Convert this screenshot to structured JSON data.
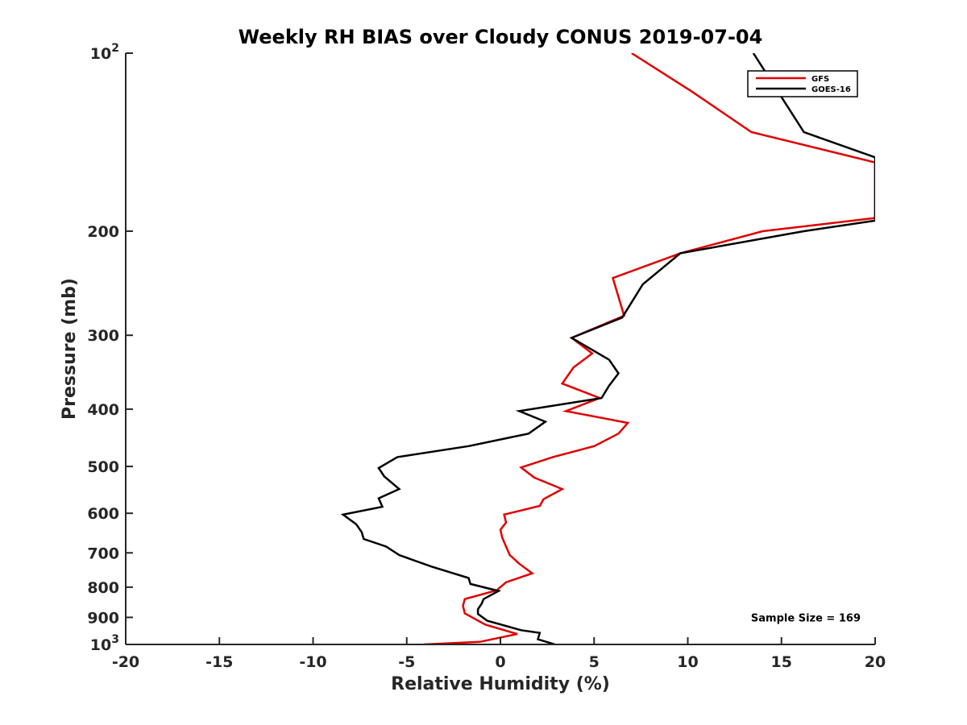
{
  "chart_data": {
    "type": "line",
    "title": "Weekly RH BIAS over Cloudy CONUS 2019-07-04",
    "xlabel": "Relative Humidity (%)",
    "ylabel": "Pressure (mb)",
    "xlim": [
      -20,
      20
    ],
    "ylim": [
      100,
      1000
    ],
    "y_scale": "log",
    "y_reversed": true,
    "x_ticks": [
      -20,
      -15,
      -10,
      -5,
      0,
      5,
      10,
      15,
      20
    ],
    "x_tick_labels": [
      "-20",
      "-15",
      "-10",
      "-5",
      "0",
      "5",
      "10",
      "15",
      "20"
    ],
    "y_ticks": [
      100,
      200,
      300,
      400,
      500,
      600,
      700,
      800,
      900,
      1000
    ],
    "y_tick_labels": [
      {
        "base": "10",
        "exp": "2"
      },
      {
        "base": "200",
        "exp": ""
      },
      {
        "base": "300",
        "exp": ""
      },
      {
        "base": "400",
        "exp": ""
      },
      {
        "base": "500",
        "exp": ""
      },
      {
        "base": "600",
        "exp": ""
      },
      {
        "base": "700",
        "exp": ""
      },
      {
        "base": "800",
        "exp": ""
      },
      {
        "base": "900",
        "exp": ""
      },
      {
        "base": "10",
        "exp": "3"
      }
    ],
    "grid": false,
    "legend_position": "top-right",
    "series": [
      {
        "name": "GFS",
        "color": "#e00000",
        "points": [
          [
            7.0,
            100
          ],
          [
            10.2,
            116
          ],
          [
            13.4,
            136
          ],
          [
            20,
            153
          ],
          [
            20,
            190
          ],
          [
            14.0,
            200
          ],
          [
            9.6,
            218
          ],
          [
            6.0,
            240
          ],
          [
            6.6,
            278
          ],
          [
            3.8,
            303
          ],
          [
            4.9,
            322
          ],
          [
            3.9,
            340
          ],
          [
            3.3,
            362
          ],
          [
            5.3,
            383
          ],
          [
            3.5,
            403
          ],
          [
            6.8,
            422
          ],
          [
            6.3,
            440
          ],
          [
            5.0,
            462
          ],
          [
            2.8,
            482
          ],
          [
            1.1,
            502
          ],
          [
            1.8,
            522
          ],
          [
            3.3,
            546
          ],
          [
            2.3,
            568
          ],
          [
            2.1,
            583
          ],
          [
            0.2,
            603
          ],
          [
            0.3,
            622
          ],
          [
            0.0,
            640
          ],
          [
            0.1,
            660
          ],
          [
            0.3,
            683
          ],
          [
            0.5,
            706
          ],
          [
            1.0,
            730
          ],
          [
            1.7,
            758
          ],
          [
            0.3,
            785
          ],
          [
            -0.2,
            810
          ],
          [
            -1.9,
            838
          ],
          [
            -2.0,
            860
          ],
          [
            -1.9,
            886
          ],
          [
            -0.8,
            926
          ],
          [
            0.9,
            960
          ],
          [
            -1.1,
            990
          ],
          [
            -4.1,
            1000
          ]
        ]
      },
      {
        "name": "GOES-16",
        "color": "#000000",
        "points": [
          [
            13.5,
            100
          ],
          [
            16.2,
            136
          ],
          [
            20,
            150
          ],
          [
            20,
            192
          ],
          [
            16.2,
            200
          ],
          [
            9.6,
            218
          ],
          [
            7.6,
            246
          ],
          [
            6.5,
            280
          ],
          [
            3.8,
            303
          ],
          [
            5.8,
            330
          ],
          [
            6.3,
            348
          ],
          [
            5.8,
            365
          ],
          [
            5.4,
            383
          ],
          [
            1.0,
            403
          ],
          [
            2.4,
            420
          ],
          [
            1.5,
            440
          ],
          [
            -1.7,
            462
          ],
          [
            -5.5,
            482
          ],
          [
            -6.5,
            503
          ],
          [
            -6.2,
            520
          ],
          [
            -5.4,
            546
          ],
          [
            -6.5,
            566
          ],
          [
            -6.3,
            585
          ],
          [
            -8.4,
            603
          ],
          [
            -7.7,
            626
          ],
          [
            -7.4,
            646
          ],
          [
            -7.3,
            663
          ],
          [
            -6.1,
            683
          ],
          [
            -5.4,
            706
          ],
          [
            -3.7,
            738
          ],
          [
            -1.7,
            772
          ],
          [
            -1.6,
            790
          ],
          [
            -0.1,
            812
          ],
          [
            -0.9,
            838
          ],
          [
            -1.0,
            853
          ],
          [
            -1.2,
            872
          ],
          [
            -1.2,
            888
          ],
          [
            -0.7,
            912
          ],
          [
            1.1,
            946
          ],
          [
            2.1,
            956
          ],
          [
            2.0,
            980
          ],
          [
            2.9,
            1000
          ]
        ]
      }
    ],
    "annotations": [
      {
        "text": "Sample Size = 169",
        "x": 16.3,
        "y": 900
      }
    ]
  }
}
